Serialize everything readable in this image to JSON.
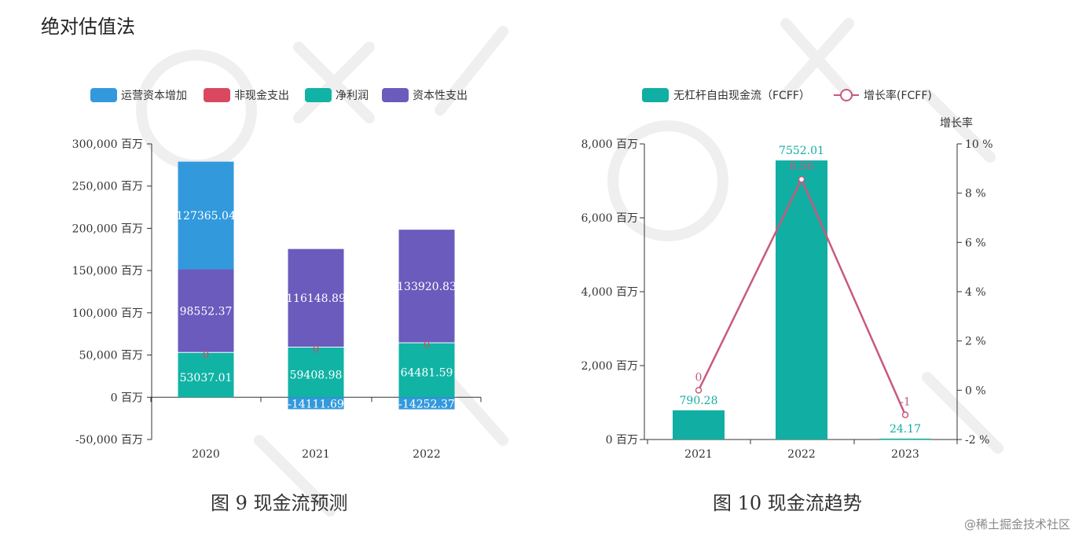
{
  "page_title": "绝对估值法",
  "credit": "@稀土掘金技术社区",
  "charts": {
    "left": {
      "caption": "图 9 现金流预测",
      "unit": "百万"
    },
    "right": {
      "caption": "图 10 现金流趋势",
      "unit": "百万",
      "right_axis_title": "增长率"
    }
  },
  "colors": {
    "operating_capital": "#3399dd",
    "non_cash": "#d9485f",
    "net_profit": "#11b3a5",
    "capex": "#6a5bbd",
    "fcff_bar": "#11aea3",
    "growth_line": "#c85a7c"
  },
  "chart_data": [
    {
      "type": "bar",
      "stacked": true,
      "categories": [
        "2020",
        "2021",
        "2022"
      ],
      "series": [
        {
          "name": "运营资本增加",
          "values": [
            127365.04,
            -14111.69,
            -14252.37
          ]
        },
        {
          "name": "非现金支出",
          "values": [
            0,
            0,
            0
          ]
        },
        {
          "name": "净利润",
          "values": [
            53037.01,
            59408.98,
            64481.59
          ]
        },
        {
          "name": "资本性支出",
          "values": [
            98552.37,
            116148.89,
            133920.83
          ]
        }
      ],
      "data_labels": {
        "operating": [
          "127365.04",
          "-14111.69",
          "-14252.37"
        ],
        "non_cash": [
          "0",
          "0",
          "0"
        ],
        "net_profit": [
          "53037.01",
          "59408.98",
          "64481.59"
        ],
        "capex": [
          "98552.37",
          "116148.89",
          "133920.83"
        ]
      },
      "ylim": [
        -50000,
        300000
      ],
      "yticks": [
        "300,000 百万",
        "250,000 百万",
        "200,000 百万",
        "150,000 百万",
        "100,000 百万",
        "50,000 百万",
        "0 百万",
        "-50,000 百万"
      ],
      "ytick_values": [
        300000,
        250000,
        200000,
        150000,
        100000,
        50000,
        0,
        -50000
      ],
      "legend_position": "top",
      "grid": false
    },
    {
      "type": "bar+line",
      "categories": [
        "2021",
        "2022",
        "2023"
      ],
      "series": [
        {
          "name": "无杠杆自由现金流（FCFF）",
          "values": [
            790.28,
            7552.01,
            24.17
          ],
          "axis": "left"
        },
        {
          "name": "增长率(FCFF)",
          "values": [
            0,
            8.56,
            -1
          ],
          "axis": "right"
        }
      ],
      "bar_labels": [
        "790.28",
        "7552.01",
        "24.17"
      ],
      "line_labels": [
        "0",
        "8.56",
        "-1"
      ],
      "ylim_left": [
        0,
        8000
      ],
      "ylim_right": [
        -2,
        10
      ],
      "yticks_left": [
        "8,000 百万",
        "6,000 百万",
        "4,000 百万",
        "2,000 百万",
        "0 百万"
      ],
      "ytick_values_left": [
        8000,
        6000,
        4000,
        2000,
        0
      ],
      "yticks_right": [
        "10 %",
        "8 %",
        "6 %",
        "4 %",
        "2 %",
        "0 %",
        "-2 %"
      ],
      "ytick_values_right": [
        10,
        8,
        6,
        4,
        2,
        0,
        -2
      ],
      "legend_position": "top",
      "grid": false
    }
  ]
}
